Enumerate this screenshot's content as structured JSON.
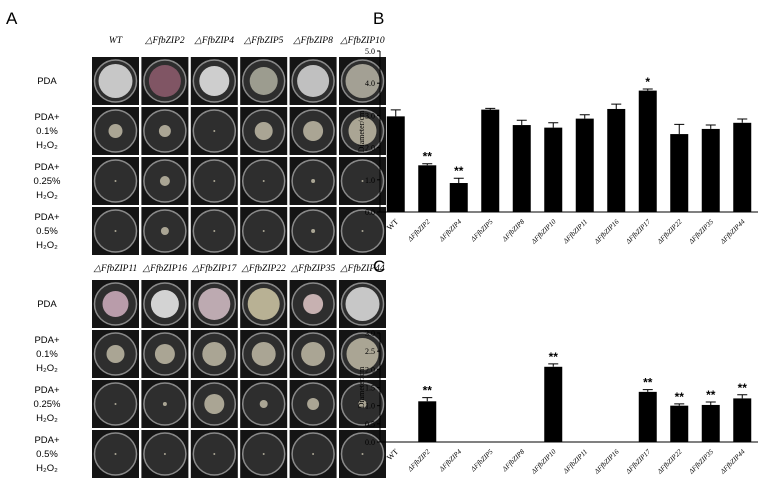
{
  "panel_labels": [
    "A",
    "B",
    "C"
  ],
  "panel_a": {
    "blocks": [
      {
        "headers": [
          "WT",
          "△FfbZIP2",
          "△FfbZIP4",
          "△FfbZIP5",
          "△FfbZIP8",
          "△FfbZIP10"
        ],
        "rows": [
          [
            "PDA"
          ],
          [
            "PDA+",
            "0.1%",
            "H₂O₂"
          ],
          [
            "PDA+",
            "0.25%",
            "H₂O₂"
          ],
          [
            "PDA+",
            "0.5%",
            "H₂O₂"
          ]
        ]
      },
      {
        "headers": [
          "△FfbZIP11",
          "△FfbZIP16",
          "△FfbZIP17",
          "△FfbZIP22",
          "△FfbZIP35",
          "△FfbZIP44"
        ],
        "rows": [
          [
            "PDA"
          ],
          [
            "PDA+",
            "0.1%",
            "H₂O₂"
          ],
          [
            "PDA+",
            "0.25%",
            "H₂O₂"
          ],
          [
            "PDA+",
            "0.5%",
            "H₂O₂"
          ]
        ]
      }
    ]
  },
  "chart_data": [
    {
      "type": "bar",
      "y_label": "Diameter/cm",
      "color": "#000000",
      "categories": [
        "WT",
        "ΔFfbZIP2",
        "ΔFfbZIP4",
        "ΔFfbZIP5",
        "ΔFfbZIP8",
        "ΔFfbZIP10",
        "ΔFfbZIP11",
        "ΔFfbZIP16",
        "ΔFfbZIP17",
        "ΔFfbZIP22",
        "ΔFfbZIP35",
        "ΔFfbZIP44"
      ],
      "values": [
        2.97,
        1.45,
        0.9,
        3.18,
        2.7,
        2.62,
        2.9,
        3.2,
        3.77,
        2.42,
        2.58,
        2.77
      ],
      "errors": [
        0.2,
        0.05,
        0.15,
        0.04,
        0.15,
        0.15,
        0.12,
        0.15,
        0.05,
        0.3,
        0.12,
        0.12
      ],
      "significance": [
        null,
        "**",
        "**",
        null,
        null,
        null,
        null,
        null,
        "*",
        null,
        null,
        null
      ],
      "ylim": [
        0,
        5
      ],
      "yticks": [
        {
          "value": 0,
          "label": "0.0"
        },
        {
          "value": 1,
          "label": "1.0"
        },
        {
          "value": 2,
          "label": "2.0"
        },
        {
          "value": 3,
          "label": "3.0"
        },
        {
          "value": 4,
          "label": "4.0"
        },
        {
          "value": 5,
          "label": "5.0"
        }
      ]
    },
    {
      "type": "bar",
      "y_label": "Diameter/cm",
      "color": "#000000",
      "categories": [
        "WT",
        "ΔFfbZIP2",
        "ΔFfbZIP4",
        "ΔFfbZIP5",
        "ΔFfbZIP8",
        "ΔFfbZIP10",
        "ΔFfbZIP11",
        "ΔFfbZIP16",
        "ΔFfbZIP17",
        "ΔFfbZIP22",
        "ΔFfbZIP35",
        "ΔFfbZIP44"
      ],
      "values": [
        0,
        1.12,
        0,
        0,
        0,
        2.07,
        0,
        0,
        1.38,
        1.0,
        1.02,
        1.2
      ],
      "errors": [
        0,
        0.1,
        0,
        0,
        0,
        0.08,
        0,
        0,
        0.06,
        0.05,
        0.08,
        0.1
      ],
      "significance": [
        null,
        "**",
        null,
        null,
        null,
        "**",
        null,
        null,
        "**",
        "**",
        "**",
        "**"
      ],
      "ylim": [
        0,
        3
      ],
      "yticks": [
        {
          "value": 0,
          "label": "0.0"
        },
        {
          "value": 0.5,
          "label": "0.5"
        },
        {
          "value": 1,
          "label": "1.0"
        },
        {
          "value": 1.5,
          "label": "1.5"
        },
        {
          "value": 2,
          "label": "2.0"
        },
        {
          "value": 2.5,
          "label": "2.5"
        },
        {
          "value": 3,
          "label": "3.0"
        }
      ]
    }
  ]
}
